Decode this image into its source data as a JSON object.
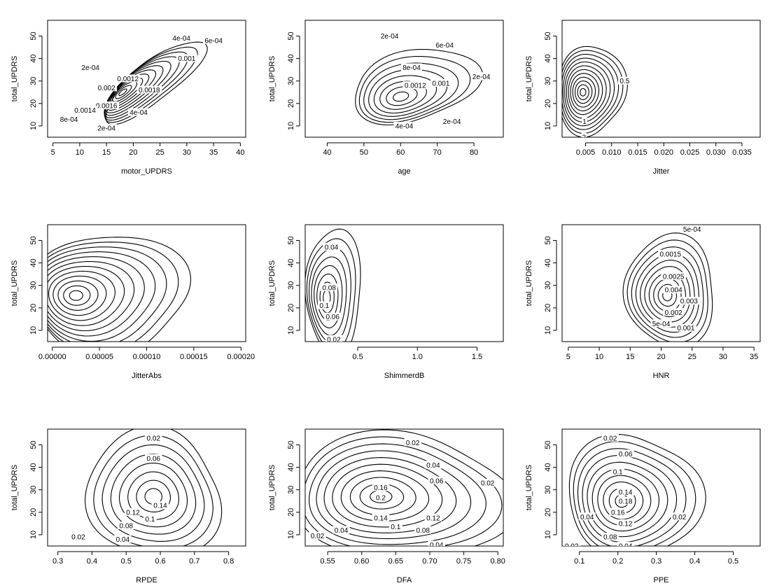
{
  "chart_data": [
    {
      "type": "contour",
      "xlabel": "motor_UPDRS",
      "ylabel": "total_UPDRS",
      "xlim": [
        4,
        41
      ],
      "ylim": [
        5,
        57
      ],
      "xticks": [
        5,
        10,
        15,
        20,
        25,
        30,
        35,
        40
      ],
      "yticks": [
        10,
        20,
        30,
        40,
        50
      ],
      "xtick_labels": [
        "5",
        "10",
        "15",
        "20",
        "25",
        "30",
        "35",
        "40"
      ],
      "ytick_labels": [
        "10",
        "20",
        "30",
        "40",
        "50"
      ],
      "peak": {
        "x": 18,
        "y": 25
      },
      "rx": 11,
      "ry": 9,
      "angle_deg": 38,
      "shift": [
        6,
        5
      ],
      "levels": 12,
      "contour_labels": [
        {
          "text": "2e-04",
          "x": 12,
          "y": 36
        },
        {
          "text": "4e-04",
          "x": 29,
          "y": 49
        },
        {
          "text": "6e-04",
          "x": 35,
          "y": 48
        },
        {
          "text": "0.001",
          "x": 30,
          "y": 40
        },
        {
          "text": "0.0012",
          "x": 19,
          "y": 31
        },
        {
          "text": "0.002",
          "x": 15,
          "y": 27
        },
        {
          "text": "0.0018",
          "x": 23,
          "y": 26
        },
        {
          "text": "0.0016",
          "x": 15,
          "y": 19
        },
        {
          "text": "0.0014",
          "x": 11,
          "y": 17
        },
        {
          "text": "8e-04",
          "x": 8,
          "y": 13
        },
        {
          "text": "4e-04",
          "x": 21,
          "y": 16
        },
        {
          "text": "2e-04",
          "x": 15,
          "y": 9
        }
      ]
    },
    {
      "type": "contour",
      "xlabel": "age",
      "ylabel": "total_UPDRS",
      "xlim": [
        34,
        88
      ],
      "ylim": [
        5,
        57
      ],
      "xticks": [
        40,
        50,
        60,
        70,
        80
      ],
      "yticks": [
        10,
        20,
        30,
        40,
        50
      ],
      "xtick_labels": [
        "40",
        "50",
        "60",
        "70",
        "80"
      ],
      "ytick_labels": [
        "10",
        "20",
        "30",
        "40",
        "50"
      ],
      "peak": {
        "x": 60,
        "y": 23
      },
      "rx": 17,
      "ry": 16,
      "angle_deg": 12,
      "shift": [
        4,
        5
      ],
      "levels": 8,
      "contour_labels": [
        {
          "text": "2e-04",
          "x": 57,
          "y": 50
        },
        {
          "text": "6e-04",
          "x": 72,
          "y": 46
        },
        {
          "text": "8e-04",
          "x": 63,
          "y": 36
        },
        {
          "text": "0.0012",
          "x": 64,
          "y": 28
        },
        {
          "text": "0.001",
          "x": 71,
          "y": 29
        },
        {
          "text": "2e-04",
          "x": 82,
          "y": 32
        },
        {
          "text": "4e-04",
          "x": 61,
          "y": 10
        },
        {
          "text": "2e-04",
          "x": 74,
          "y": 12
        }
      ]
    },
    {
      "type": "contour",
      "xlabel": "Jitter",
      "ylabel": "total_UPDRS",
      "xlim": [
        0.0005,
        0.0385
      ],
      "ylim": [
        5,
        57
      ],
      "xticks": [
        0.005,
        0.01,
        0.015,
        0.02,
        0.025,
        0.03,
        0.035
      ],
      "yticks": [
        10,
        20,
        30,
        40,
        50
      ],
      "xtick_labels": [
        "0.005",
        "0.010",
        "0.015",
        "0.020",
        "0.025",
        "0.030",
        "0.035"
      ],
      "ytick_labels": [
        "10",
        "20",
        "30",
        "40",
        "50"
      ],
      "peak": {
        "x": 0.0045,
        "y": 25
      },
      "rx": 0.0065,
      "ry": 20,
      "angle_deg": 0,
      "shift": [
        0.0015,
        1
      ],
      "levels": 12,
      "contour_labels": [
        {
          "text": "0.5",
          "x": 0.0125,
          "y": 30
        },
        {
          "text": "1",
          "x": 0.0048,
          "y": 12
        },
        {
          "text": "2",
          "x": 0.0047,
          "y": 5
        }
      ]
    },
    {
      "type": "contour",
      "xlabel": "JitterAbs",
      "ylabel": "total_UPDRS",
      "xlim": [
        -5e-06,
        0.000205
      ],
      "ylim": [
        5,
        57
      ],
      "xticks": [
        0,
        5e-05,
        0.0001,
        0.00015,
        0.0002
      ],
      "yticks": [
        10,
        20,
        30,
        40,
        50
      ],
      "xtick_labels": [
        "0.00000",
        "0.00005",
        "0.00010",
        "0.00015",
        "0.00020"
      ],
      "ytick_labels": [
        "10",
        "20",
        "30",
        "40",
        "50"
      ],
      "peak": {
        "x": 2.5e-05,
        "y": 25.5
      },
      "rx": 8.5e-05,
      "ry": 26,
      "angle_deg": 0,
      "shift": [
        3.5e-05,
        1
      ],
      "levels": 12,
      "contour_labels": []
    },
    {
      "type": "contour",
      "xlabel": "ShimmerdB",
      "ylabel": "total_UPDRS",
      "xlim": [
        0.06,
        1.72
      ],
      "ylim": [
        5,
        57
      ],
      "xticks": [
        0.5,
        1.0,
        1.5
      ],
      "yticks": [
        10,
        20,
        30,
        40,
        50
      ],
      "xtick_labels": [
        "0.5",
        "1.0",
        "1.5"
      ],
      "ytick_labels": [
        "10",
        "20",
        "30",
        "40",
        "50"
      ],
      "peak": {
        "x": 0.24,
        "y": 24.5
      },
      "rx": 0.24,
      "ry": 27,
      "angle_deg": 0,
      "shift": [
        0.06,
        3
      ],
      "levels": 8,
      "contour_labels": [
        {
          "text": "0.04",
          "x": 0.28,
          "y": 47
        },
        {
          "text": "0.08",
          "x": 0.26,
          "y": 29
        },
        {
          "text": "0.1",
          "x": 0.22,
          "y": 21
        },
        {
          "text": "0.06",
          "x": 0.29,
          "y": 16
        },
        {
          "text": "0.02",
          "x": 0.3,
          "y": 6
        }
      ]
    },
    {
      "type": "contour",
      "xlabel": "HNR",
      "ylabel": "total_UPDRS",
      "xlim": [
        4,
        36
      ],
      "ylim": [
        5,
        57
      ],
      "xticks": [
        5,
        10,
        15,
        20,
        25,
        30,
        35
      ],
      "yticks": [
        10,
        20,
        30,
        40,
        50
      ],
      "xtick_labels": [
        "5",
        "10",
        "15",
        "20",
        "25",
        "30",
        "35"
      ],
      "ytick_labels": [
        "10",
        "20",
        "30",
        "40",
        "50"
      ],
      "peak": {
        "x": 21,
        "y": 25.5
      },
      "rx": 7.5,
      "ry": 24,
      "angle_deg": 0,
      "shift": [
        0.5,
        2
      ],
      "levels": 10,
      "contour_labels": [
        {
          "text": "5e-04",
          "x": 25,
          "y": 55
        },
        {
          "text": "0.0015",
          "x": 21.5,
          "y": 44
        },
        {
          "text": "0.0025",
          "x": 22,
          "y": 34
        },
        {
          "text": "0.004",
          "x": 22,
          "y": 28
        },
        {
          "text": "0.003",
          "x": 24.5,
          "y": 23
        },
        {
          "text": "0.002",
          "x": 22,
          "y": 18
        },
        {
          "text": "5e-04",
          "x": 20,
          "y": 13
        },
        {
          "text": "0.001",
          "x": 24,
          "y": 11
        }
      ]
    },
    {
      "type": "contour",
      "xlabel": "RPDE",
      "ylabel": "total_UPDRS",
      "xlim": [
        0.27,
        0.85
      ],
      "ylim": [
        5,
        57
      ],
      "xticks": [
        0.3,
        0.4,
        0.5,
        0.6,
        0.7,
        0.8
      ],
      "yticks": [
        10,
        20,
        30,
        40,
        50
      ],
      "xtick_labels": [
        "0.3",
        "0.4",
        "0.5",
        "0.6",
        "0.7",
        "0.8"
      ],
      "ytick_labels": [
        "10",
        "20",
        "30",
        "40",
        "50"
      ],
      "peak": {
        "x": 0.58,
        "y": 27
      },
      "rx": 0.2,
      "ry": 28,
      "angle_deg": 0,
      "shift": [
        0.0,
        1
      ],
      "levels": 8,
      "contour_labels": [
        {
          "text": "0.02",
          "x": 0.58,
          "y": 53
        },
        {
          "text": "0.06",
          "x": 0.58,
          "y": 44
        },
        {
          "text": "0.14",
          "x": 0.6,
          "y": 23
        },
        {
          "text": "0.12",
          "x": 0.52,
          "y": 20
        },
        {
          "text": "0.1",
          "x": 0.57,
          "y": 17
        },
        {
          "text": "0.08",
          "x": 0.5,
          "y": 14
        },
        {
          "text": "0.04",
          "x": 0.49,
          "y": 8
        },
        {
          "text": "0.02",
          "x": 0.36,
          "y": 9
        }
      ]
    },
    {
      "type": "contour",
      "xlabel": "DFA",
      "ylabel": "total_UPDRS",
      "xlim": [
        0.517,
        0.808
      ],
      "ylim": [
        5,
        57
      ],
      "xticks": [
        0.55,
        0.6,
        0.65,
        0.7,
        0.75,
        0.8
      ],
      "yticks": [
        10,
        20,
        30,
        40,
        50
      ],
      "xtick_labels": [
        "0.55",
        "0.60",
        "0.65",
        "0.70",
        "0.75",
        "0.80"
      ],
      "ytick_labels": [
        "10",
        "20",
        "30",
        "40",
        "50"
      ],
      "peak": {
        "x": 0.628,
        "y": 27
      },
      "rx": 0.16,
      "ry": 28,
      "angle_deg": 0,
      "shift": [
        0.03,
        0
      ],
      "levels": 10,
      "contour_labels": [
        {
          "text": "0.02",
          "x": 0.675,
          "y": 51
        },
        {
          "text": "0.04",
          "x": 0.705,
          "y": 41
        },
        {
          "text": "0.06",
          "x": 0.71,
          "y": 34
        },
        {
          "text": "0.02",
          "x": 0.785,
          "y": 33
        },
        {
          "text": "0.16",
          "x": 0.628,
          "y": 31
        },
        {
          "text": "0.2",
          "x": 0.628,
          "y": 26.5
        },
        {
          "text": "0.14",
          "x": 0.628,
          "y": 17.5
        },
        {
          "text": "0.12",
          "x": 0.705,
          "y": 17.5
        },
        {
          "text": "0.1",
          "x": 0.65,
          "y": 13.5
        },
        {
          "text": "0.08",
          "x": 0.69,
          "y": 12
        },
        {
          "text": "0.04",
          "x": 0.57,
          "y": 12
        },
        {
          "text": "0.02",
          "x": 0.535,
          "y": 9.5
        },
        {
          "text": "0.04",
          "x": 0.71,
          "y": 5.5
        },
        {
          "text": "0.02",
          "x": 0.74,
          "y": 2.5
        }
      ]
    },
    {
      "type": "contour",
      "xlabel": "PPE",
      "ylabel": "total_UPDRS",
      "xlim": [
        0.055,
        0.57
      ],
      "ylim": [
        5,
        57
      ],
      "xticks": [
        0.1,
        0.2,
        0.3,
        0.4,
        0.5
      ],
      "yticks": [
        10,
        20,
        30,
        40,
        50
      ],
      "xtick_labels": [
        "0.1",
        "0.2",
        "0.3",
        "0.4",
        "0.5"
      ],
      "ytick_labels": [
        "10",
        "20",
        "30",
        "40",
        "50"
      ],
      "peak": {
        "x": 0.21,
        "y": 25
      },
      "rx": 0.17,
      "ry": 28,
      "angle_deg": 0,
      "shift": [
        0.03,
        2
      ],
      "levels": 10,
      "contour_labels": [
        {
          "text": "0.02",
          "x": 0.18,
          "y": 53
        },
        {
          "text": "0.06",
          "x": 0.22,
          "y": 46
        },
        {
          "text": "0.1",
          "x": 0.2,
          "y": 38
        },
        {
          "text": "0.14",
          "x": 0.22,
          "y": 29
        },
        {
          "text": "0.18",
          "x": 0.22,
          "y": 25
        },
        {
          "text": "0.16",
          "x": 0.2,
          "y": 20
        },
        {
          "text": "0.12",
          "x": 0.22,
          "y": 15
        },
        {
          "text": "0.04",
          "x": 0.12,
          "y": 18
        },
        {
          "text": "0.02",
          "x": 0.36,
          "y": 18
        },
        {
          "text": "0.08",
          "x": 0.18,
          "y": 9
        },
        {
          "text": "0.04",
          "x": 0.22,
          "y": 5
        },
        {
          "text": "0.02",
          "x": 0.08,
          "y": 5
        }
      ]
    }
  ]
}
